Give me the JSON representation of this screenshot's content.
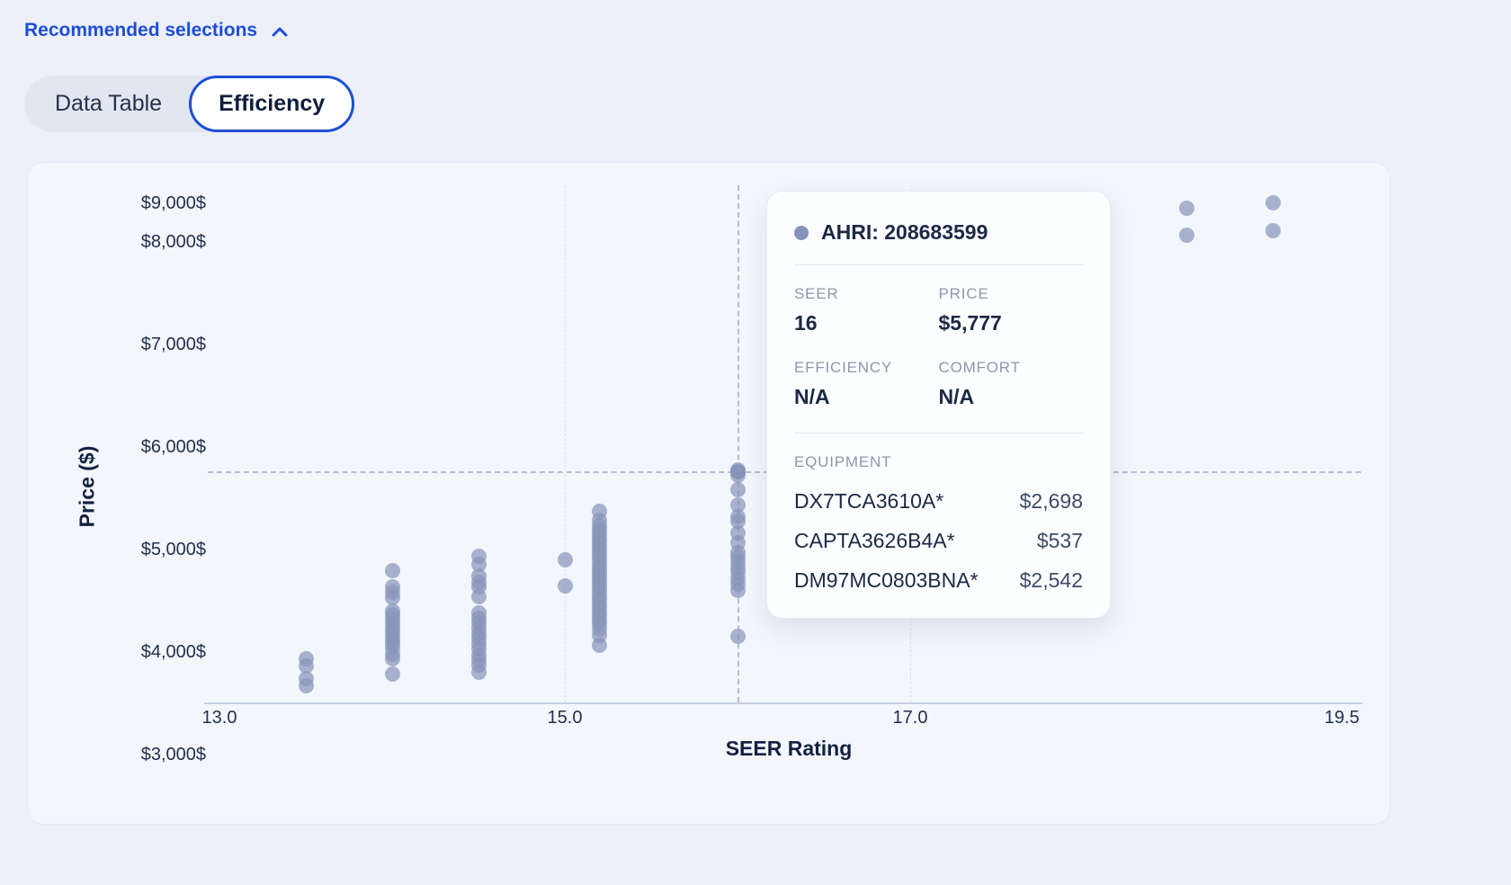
{
  "colors": {
    "accent": "#1e4ed8",
    "point": "#8694b9"
  },
  "header": {
    "recommended_label": "Recommended selections",
    "tabs": [
      {
        "label": "Data Table",
        "active": false
      },
      {
        "label": "Efficiency",
        "active": true
      }
    ]
  },
  "chart_data": {
    "type": "scatter",
    "xlabel": "SEER Rating",
    "ylabel": "Price ($)",
    "xlim": [
      13,
      19.5
    ],
    "ylim": [
      3000,
      9000
    ],
    "x_ticks": [
      {
        "label": "13.0",
        "value": 13
      },
      {
        "label": "15.0",
        "value": 15
      },
      {
        "label": "17.0",
        "value": 17
      },
      {
        "label": "19.5",
        "value": 19.5
      }
    ],
    "grid_x": [
      15,
      17
    ],
    "y_ticks": [
      {
        "label": "$9,000$",
        "value": 9000
      },
      {
        "label": "$8,000$",
        "value": 8000
      },
      {
        "label": "$7,000$",
        "value": 7000
      },
      {
        "label": "$6,000$",
        "value": 6000
      },
      {
        "label": "$5,000$",
        "value": 5000
      },
      {
        "label": "$4,000$",
        "value": 4000
      },
      {
        "label": "$3,000$",
        "value": 3000
      }
    ],
    "crosshair": {
      "x": 16,
      "y": 5777
    },
    "highlight_point": {
      "x": 16,
      "y": 5777
    },
    "points": [
      {
        "x": 13.5,
        "y": 3950
      },
      {
        "x": 13.5,
        "y": 3880
      },
      {
        "x": 13.5,
        "y": 3760
      },
      {
        "x": 13.5,
        "y": 3690
      },
      {
        "x": 14.0,
        "y": 4810
      },
      {
        "x": 14.0,
        "y": 4650
      },
      {
        "x": 14.0,
        "y": 4600
      },
      {
        "x": 14.0,
        "y": 4550
      },
      {
        "x": 14.0,
        "y": 4420
      },
      {
        "x": 14.0,
        "y": 4380
      },
      {
        "x": 14.0,
        "y": 4340
      },
      {
        "x": 14.0,
        "y": 4300
      },
      {
        "x": 14.0,
        "y": 4260
      },
      {
        "x": 14.0,
        "y": 4220
      },
      {
        "x": 14.0,
        "y": 4180
      },
      {
        "x": 14.0,
        "y": 4140
      },
      {
        "x": 14.0,
        "y": 4100
      },
      {
        "x": 14.0,
        "y": 4060
      },
      {
        "x": 14.0,
        "y": 4000
      },
      {
        "x": 14.0,
        "y": 3950
      },
      {
        "x": 14.0,
        "y": 3800
      },
      {
        "x": 14.5,
        "y": 4950
      },
      {
        "x": 14.5,
        "y": 4870
      },
      {
        "x": 14.5,
        "y": 4760
      },
      {
        "x": 14.5,
        "y": 4700
      },
      {
        "x": 14.5,
        "y": 4650
      },
      {
        "x": 14.5,
        "y": 4560
      },
      {
        "x": 14.5,
        "y": 4400
      },
      {
        "x": 14.5,
        "y": 4350
      },
      {
        "x": 14.5,
        "y": 4300
      },
      {
        "x": 14.5,
        "y": 4250
      },
      {
        "x": 14.5,
        "y": 4200
      },
      {
        "x": 14.5,
        "y": 4150
      },
      {
        "x": 14.5,
        "y": 4100
      },
      {
        "x": 14.5,
        "y": 4050
      },
      {
        "x": 14.5,
        "y": 3990
      },
      {
        "x": 14.5,
        "y": 3940
      },
      {
        "x": 14.5,
        "y": 3890
      },
      {
        "x": 14.5,
        "y": 3820
      },
      {
        "x": 15.0,
        "y": 4920
      },
      {
        "x": 15.0,
        "y": 4660
      },
      {
        "x": 15.2,
        "y": 5390
      },
      {
        "x": 15.2,
        "y": 5300
      },
      {
        "x": 15.2,
        "y": 5250
      },
      {
        "x": 15.2,
        "y": 5210
      },
      {
        "x": 15.2,
        "y": 5170
      },
      {
        "x": 15.2,
        "y": 5130
      },
      {
        "x": 15.2,
        "y": 5090
      },
      {
        "x": 15.2,
        "y": 5050
      },
      {
        "x": 15.2,
        "y": 5010
      },
      {
        "x": 15.2,
        "y": 4970
      },
      {
        "x": 15.2,
        "y": 4930
      },
      {
        "x": 15.2,
        "y": 4890
      },
      {
        "x": 15.2,
        "y": 4850
      },
      {
        "x": 15.2,
        "y": 4810
      },
      {
        "x": 15.2,
        "y": 4770
      },
      {
        "x": 15.2,
        "y": 4730
      },
      {
        "x": 15.2,
        "y": 4690
      },
      {
        "x": 15.2,
        "y": 4650
      },
      {
        "x": 15.2,
        "y": 4610
      },
      {
        "x": 15.2,
        "y": 4570
      },
      {
        "x": 15.2,
        "y": 4530
      },
      {
        "x": 15.2,
        "y": 4490
      },
      {
        "x": 15.2,
        "y": 4450
      },
      {
        "x": 15.2,
        "y": 4410
      },
      {
        "x": 15.2,
        "y": 4370
      },
      {
        "x": 15.2,
        "y": 4330
      },
      {
        "x": 15.2,
        "y": 4290
      },
      {
        "x": 15.2,
        "y": 4240
      },
      {
        "x": 15.2,
        "y": 4180
      },
      {
        "x": 15.2,
        "y": 4080
      },
      {
        "x": 16.0,
        "y": 5790
      },
      {
        "x": 16.0,
        "y": 5740
      },
      {
        "x": 16.0,
        "y": 5600
      },
      {
        "x": 16.0,
        "y": 5450
      },
      {
        "x": 16.0,
        "y": 5340
      },
      {
        "x": 16.0,
        "y": 5290
      },
      {
        "x": 16.0,
        "y": 5180
      },
      {
        "x": 16.0,
        "y": 5080
      },
      {
        "x": 16.0,
        "y": 4990
      },
      {
        "x": 16.0,
        "y": 4940
      },
      {
        "x": 16.0,
        "y": 4890
      },
      {
        "x": 16.0,
        "y": 4840
      },
      {
        "x": 16.0,
        "y": 4790
      },
      {
        "x": 16.0,
        "y": 4730
      },
      {
        "x": 16.0,
        "y": 4680
      },
      {
        "x": 16.0,
        "y": 4620
      },
      {
        "x": 16.0,
        "y": 4170
      },
      {
        "x": 18.6,
        "y": 8350
      },
      {
        "x": 18.6,
        "y": 8080
      },
      {
        "x": 19.1,
        "y": 8400
      },
      {
        "x": 19.1,
        "y": 8130
      }
    ]
  },
  "tooltip": {
    "title": "AHRI: 208683599",
    "stats": [
      {
        "label": "SEER",
        "value": "16"
      },
      {
        "label": "PRICE",
        "value": "$5,777"
      },
      {
        "label": "EFFICIENCY",
        "value": "N/A"
      },
      {
        "label": "COMFORT",
        "value": "N/A"
      }
    ],
    "equipment_label": "EQUIPMENT",
    "equipment": [
      {
        "model": "DX7TCA3610A*",
        "price": "$2,698"
      },
      {
        "model": "CAPTA3626B4A*",
        "price": "$537"
      },
      {
        "model": "DM97MC0803BNA*",
        "price": "$2,542"
      }
    ]
  }
}
